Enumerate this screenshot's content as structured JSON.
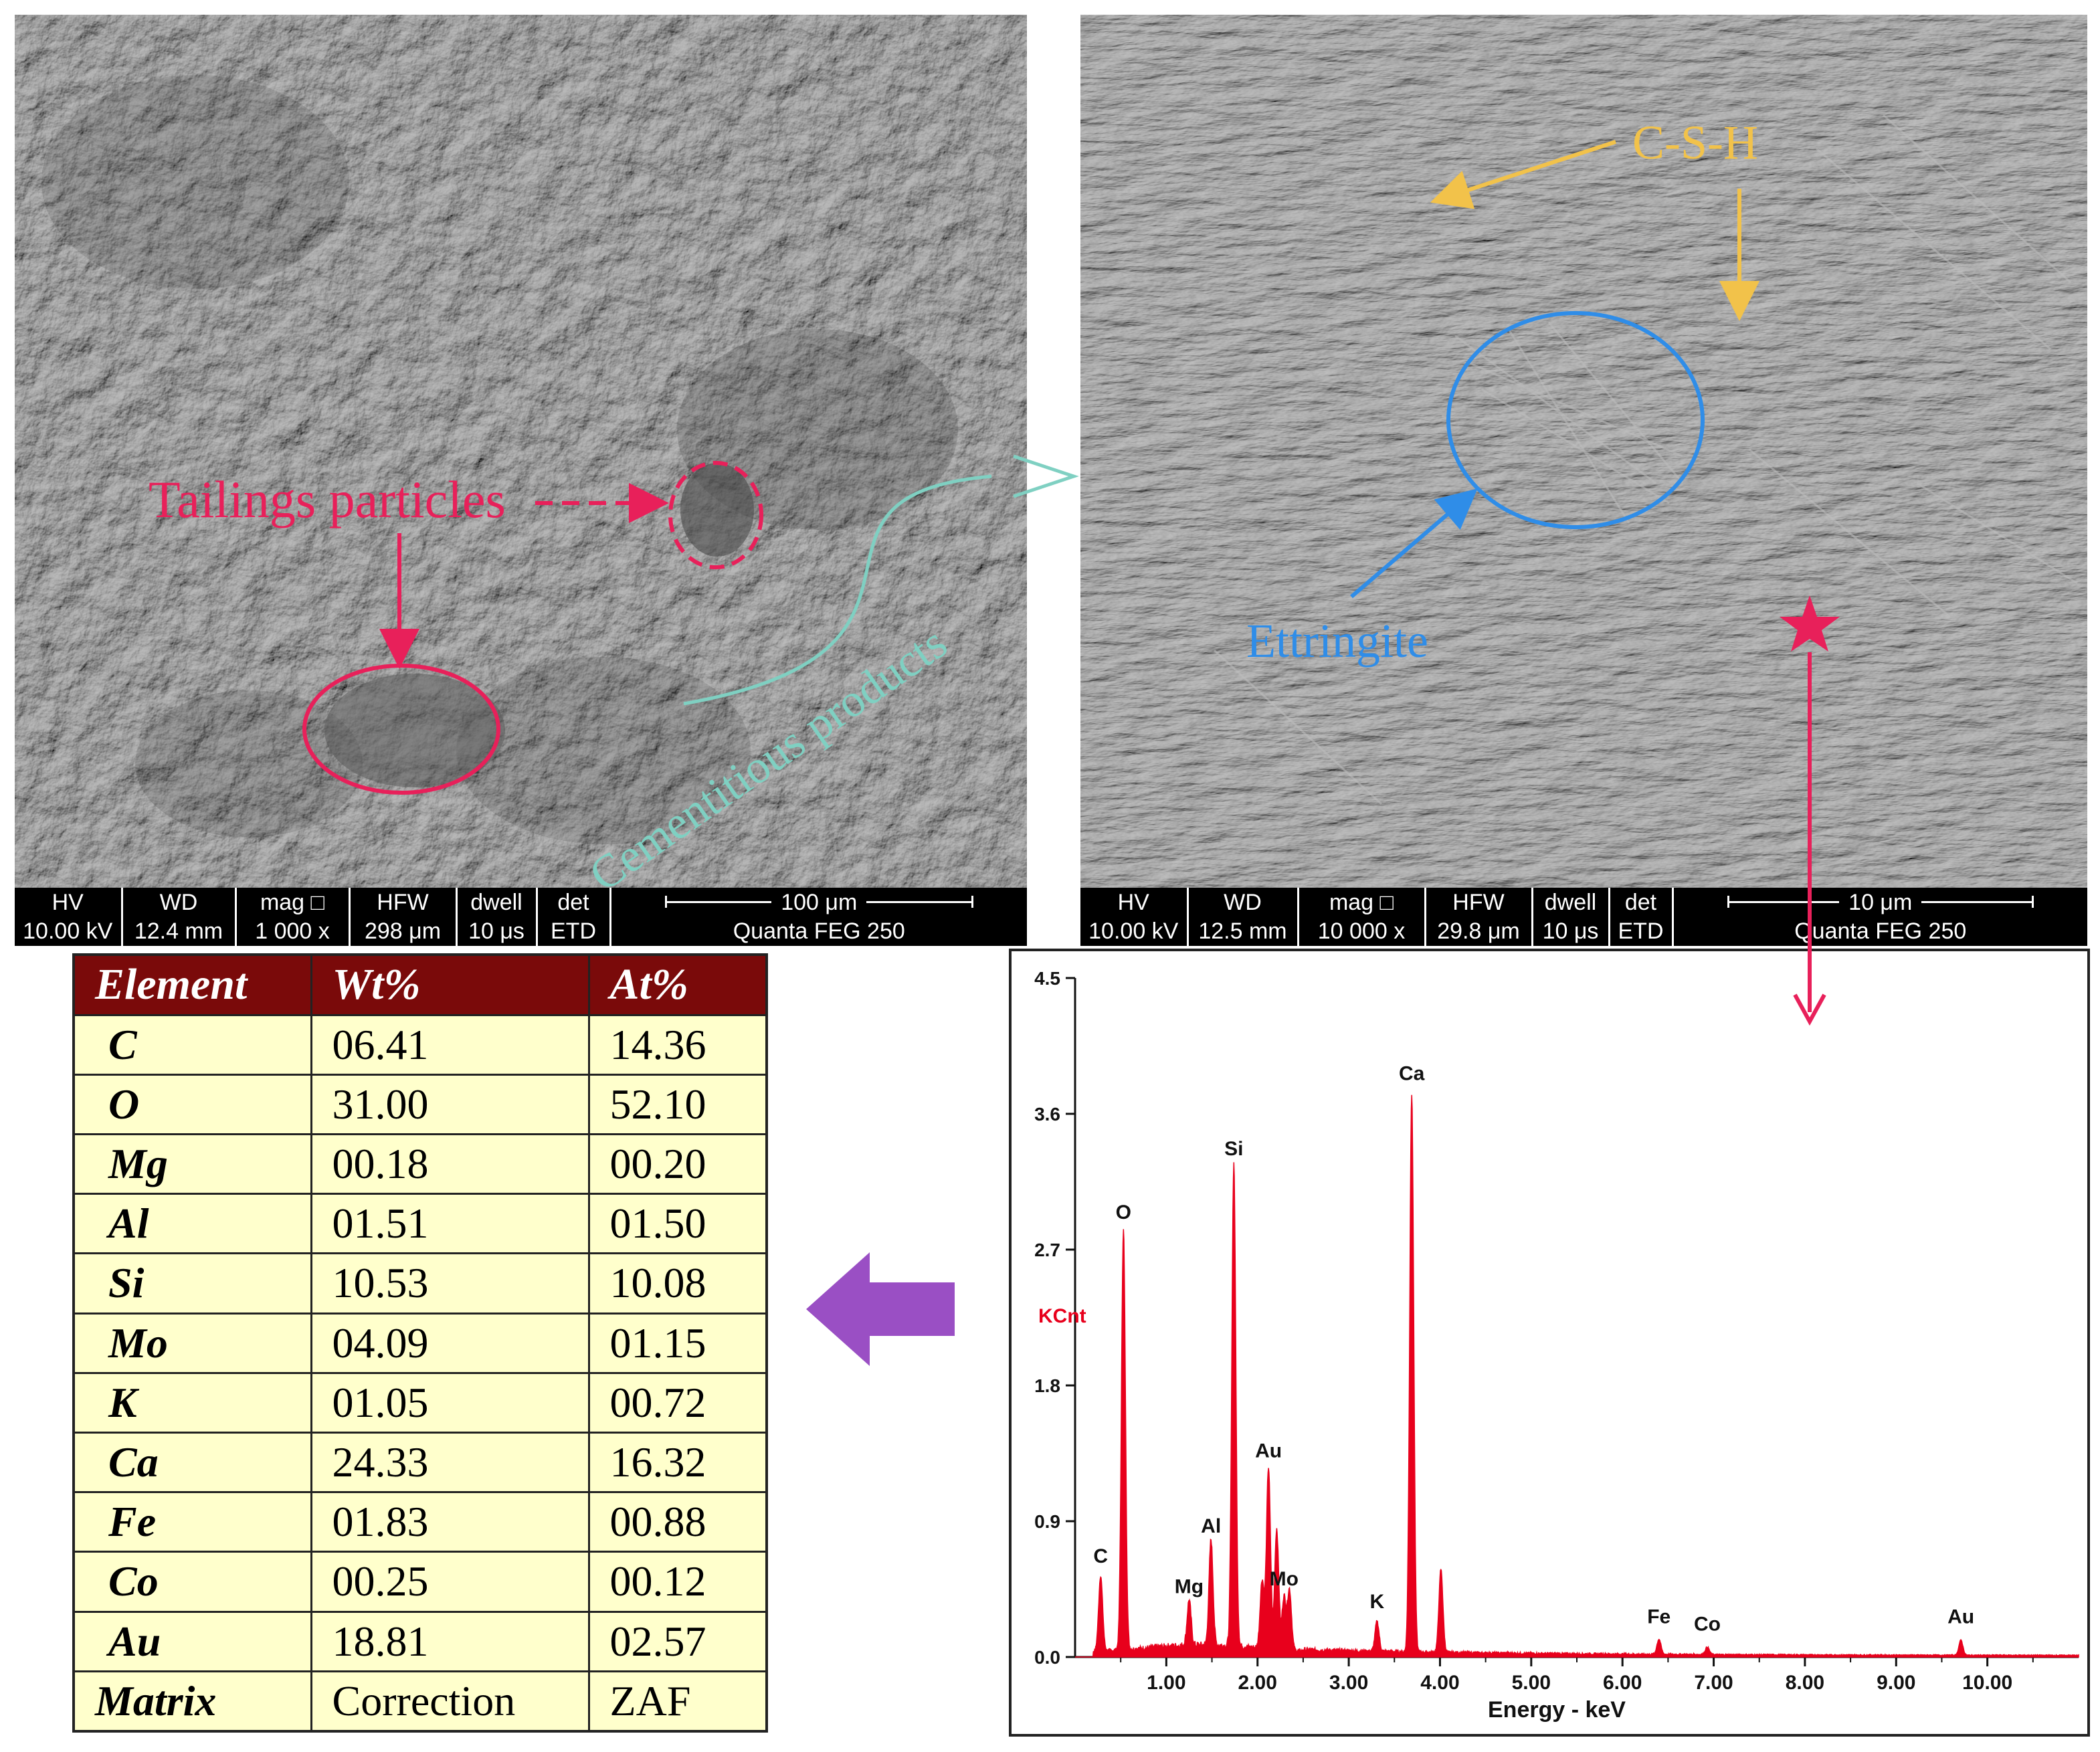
{
  "sem_left": {
    "annotations": {
      "tailings": "Tailings particles",
      "cementitious": "Cementitious products"
    },
    "infobar": {
      "headers": [
        "HV",
        "WD",
        "mag □",
        "HFW",
        "dwell",
        "det"
      ],
      "values": [
        "10.00 kV",
        "12.4 mm",
        "1 000 x",
        "298 μm",
        "10 μs",
        "ETD"
      ],
      "scale": "100 μm",
      "instrument": "Quanta FEG 250"
    }
  },
  "sem_right": {
    "annotations": {
      "csh": "C-S-H",
      "ettringite": "Ettringite"
    },
    "infobar": {
      "headers": [
        "HV",
        "WD",
        "mag □",
        "HFW",
        "dwell",
        "det"
      ],
      "values": [
        "10.00 kV",
        "12.5 mm",
        "10 000 x",
        "29.8 μm",
        "10 μs",
        "ETD"
      ],
      "scale": "10 μm",
      "instrument": "Quanta FEG 250"
    }
  },
  "element_table": {
    "headers": [
      "Element",
      "Wt%",
      "At%"
    ],
    "rows": [
      [
        "C",
        "06.41",
        "14.36"
      ],
      [
        "O",
        "31.00",
        "52.10"
      ],
      [
        "Mg",
        "00.18",
        "00.20"
      ],
      [
        "Al",
        "01.51",
        "01.50"
      ],
      [
        "Si",
        "10.53",
        "10.08"
      ],
      [
        "Mo",
        "04.09",
        "01.15"
      ],
      [
        "K",
        "01.05",
        "00.72"
      ],
      [
        "Ca",
        "24.33",
        "16.32"
      ],
      [
        "Fe",
        "01.83",
        "00.88"
      ],
      [
        "Co",
        "00.25",
        "00.12"
      ],
      [
        "Au",
        "18.81",
        "02.57"
      ]
    ],
    "footer": [
      "Matrix",
      "Correction",
      "ZAF"
    ]
  },
  "chart_data": {
    "type": "line",
    "xlabel": "Energy - keV",
    "ylabel": "KCnt",
    "xlim": [
      0,
      11
    ],
    "ylim": [
      0,
      4.5
    ],
    "xticks": [
      "1.00",
      "2.00",
      "3.00",
      "4.00",
      "5.00",
      "6.00",
      "7.00",
      "8.00",
      "9.00",
      "10.00"
    ],
    "yticks": [
      "0.0",
      "0.9",
      "1.8",
      "2.7",
      "3.6",
      "4.5"
    ],
    "series_color": "#e8001c",
    "peaks": [
      {
        "label": "C",
        "x": 0.28,
        "y": 0.5
      },
      {
        "label": "O",
        "x": 0.53,
        "y": 2.78
      },
      {
        "label": "Mg",
        "x": 1.25,
        "y": 0.3
      },
      {
        "label": "Al",
        "x": 1.49,
        "y": 0.7
      },
      {
        "label": "Si",
        "x": 1.74,
        "y": 3.2
      },
      {
        "label": "Au",
        "x": 2.12,
        "y": 1.2
      },
      {
        "label": "Mo",
        "x": 2.29,
        "y": 0.35
      },
      {
        "label": "K",
        "x": 3.31,
        "y": 0.2
      },
      {
        "label": "Ca",
        "x": 3.69,
        "y": 3.7
      },
      {
        "label": "Fe",
        "x": 6.4,
        "y": 0.1
      },
      {
        "label": "Co",
        "x": 6.93,
        "y": 0.05
      },
      {
        "label": "Au",
        "x": 9.71,
        "y": 0.1
      }
    ],
    "extra_peaks": [
      {
        "x": 4.01,
        "y": 0.55
      },
      {
        "x": 2.21,
        "y": 0.8
      },
      {
        "x": 2.05,
        "y": 0.45
      },
      {
        "x": 2.35,
        "y": 0.4
      }
    ]
  }
}
